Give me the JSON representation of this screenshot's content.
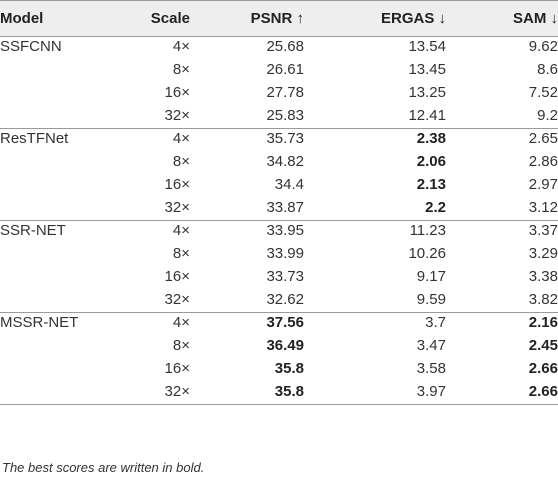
{
  "table": {
    "headers": {
      "model": "Model",
      "scale": "Scale",
      "psnr": "PSNR ↑",
      "ergas": "ERGAS ↓",
      "sam": "SAM ↓"
    },
    "groups": [
      {
        "model": "SSFCNN",
        "rows": [
          {
            "scale": "4×",
            "psnr": "25.68",
            "ergas": "13.54",
            "sam": "9.62"
          },
          {
            "scale": "8×",
            "psnr": "26.61",
            "ergas": "13.45",
            "sam": "8.6"
          },
          {
            "scale": "16×",
            "psnr": "27.78",
            "ergas": "13.25",
            "sam": "7.52"
          },
          {
            "scale": "32×",
            "psnr": "25.83",
            "ergas": "12.41",
            "sam": "9.2"
          }
        ]
      },
      {
        "model": "ResTFNet",
        "rows": [
          {
            "scale": "4×",
            "psnr": "35.73",
            "ergas": "2.38",
            "sam": "2.65"
          },
          {
            "scale": "8×",
            "psnr": "34.82",
            "ergas": "2.06",
            "sam": "2.86"
          },
          {
            "scale": "16×",
            "psnr": "34.4",
            "ergas": "2.13",
            "sam": "2.97"
          },
          {
            "scale": "32×",
            "psnr": "33.87",
            "ergas": "2.2",
            "sam": "3.12"
          }
        ]
      },
      {
        "model": "SSR-NET",
        "rows": [
          {
            "scale": "4×",
            "psnr": "33.95",
            "ergas": "11.23",
            "sam": "3.37"
          },
          {
            "scale": "8×",
            "psnr": "33.99",
            "ergas": "10.26",
            "sam": "3.29"
          },
          {
            "scale": "16×",
            "psnr": "33.73",
            "ergas": "9.17",
            "sam": "3.38"
          },
          {
            "scale": "32×",
            "psnr": "32.62",
            "ergas": "9.59",
            "sam": "3.82"
          }
        ]
      },
      {
        "model": "MSSR-NET",
        "rows": [
          {
            "scale": "4×",
            "psnr": "37.56",
            "ergas": "3.7",
            "sam": "2.16"
          },
          {
            "scale": "8×",
            "psnr": "36.49",
            "ergas": "3.47",
            "sam": "2.45"
          },
          {
            "scale": "16×",
            "psnr": "35.8",
            "ergas": "3.58",
            "sam": "2.66"
          },
          {
            "scale": "32×",
            "psnr": "35.8",
            "ergas": "3.97",
            "sam": "2.66"
          }
        ]
      }
    ],
    "best_emphasis": {
      "ResTFNet": [
        "ergas"
      ],
      "MSSR-NET": [
        "psnr",
        "sam"
      ]
    }
  },
  "footnote": "The best scores are written in bold.",
  "colors": {
    "header_background": "#eeeeee",
    "rule": "#9a9a9a",
    "text": "#333333"
  }
}
